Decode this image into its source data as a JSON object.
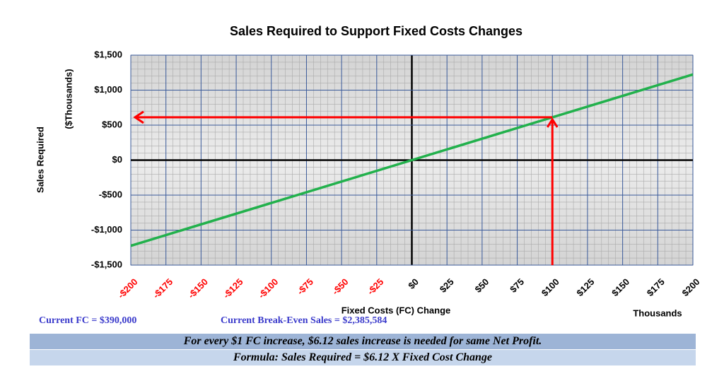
{
  "chart_data": {
    "type": "line",
    "title": "Sales Required to Support Fixed Costs Changes",
    "y_label": "Sales Required",
    "y_unit_label": "($Thousands)",
    "x_label": "Fixed Costs (FC) Change",
    "x_unit_label": "Thousands",
    "x": [
      -200,
      200
    ],
    "series": [
      {
        "name": "Sales Required",
        "color": "#22b14c",
        "values": [
          -1224,
          1224
        ]
      }
    ],
    "xlim": [
      -200,
      200
    ],
    "xticks": [
      {
        "value": -200,
        "label": "-$200"
      },
      {
        "value": -175,
        "label": "-$175"
      },
      {
        "value": -150,
        "label": "-$150"
      },
      {
        "value": -125,
        "label": "-$125"
      },
      {
        "value": -100,
        "label": "-$100"
      },
      {
        "value": -75,
        "label": "-$75"
      },
      {
        "value": -50,
        "label": "-$50"
      },
      {
        "value": -25,
        "label": "-$25"
      },
      {
        "value": 0,
        "label": "$0"
      },
      {
        "value": 25,
        "label": "$25"
      },
      {
        "value": 50,
        "label": "$50"
      },
      {
        "value": 75,
        "label": "$75"
      },
      {
        "value": 100,
        "label": "$100"
      },
      {
        "value": 125,
        "label": "$125"
      },
      {
        "value": 150,
        "label": "$150"
      },
      {
        "value": 175,
        "label": "$175"
      },
      {
        "value": 200,
        "label": "$200"
      }
    ],
    "ylim": [
      -1500,
      1500
    ],
    "yticks": [
      {
        "value": -1500,
        "label": "-$1,500"
      },
      {
        "value": -1000,
        "label": "-$1,000"
      },
      {
        "value": -500,
        "label": "-$500"
      },
      {
        "value": 0,
        "label": "$0"
      },
      {
        "value": 500,
        "label": "$500"
      },
      {
        "value": 1000,
        "label": "$1,000"
      },
      {
        "value": 1500,
        "label": "$1,500"
      }
    ],
    "grid": true,
    "highlight": {
      "x": 100,
      "y": 612,
      "color": "#ff0000"
    }
  },
  "footer": {
    "current_fc": "Current FC = $390,000",
    "break_even": "Current Break-Even Sales = $2,385,584",
    "note": "For every $1 FC increase, $6.12 sales increase is needed for same Net Profit.",
    "formula": "Formula:  Sales Required = $6.12 X Fixed Cost Change"
  }
}
